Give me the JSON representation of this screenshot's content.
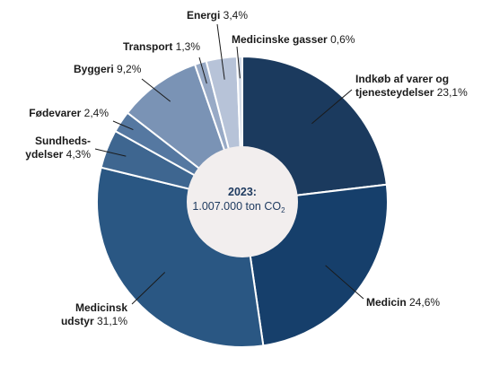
{
  "chart_data": {
    "type": "pie",
    "donut": true,
    "center_label": {
      "line1": "2023:",
      "line2": "1.007.000 ton CO",
      "line2_sub": "2"
    },
    "slices": [
      {
        "label": "Indkøb af varer og tjenesteydelser",
        "label_lines": [
          "Indkøb af varer og",
          "tjenesteydelser"
        ],
        "bold_part": [
          "Indkøb af varer og",
          "tjenesteydelser"
        ],
        "value_text": "23,1%",
        "value": 23.1,
        "color": "#1b3a5e"
      },
      {
        "label": "Medicin",
        "label_lines": [
          "Medicin"
        ],
        "bold_part": [
          "Medicin"
        ],
        "value_text": "24,6%",
        "value": 24.6,
        "color": "#163f6b"
      },
      {
        "label": "Medicinsk udstyr",
        "label_lines": [
          "Medicinsk",
          "udstyr"
        ],
        "bold_part": [
          "Medicinsk",
          "udstyr"
        ],
        "value_text": "31,1%",
        "value": 31.1,
        "color": "#2a5783"
      },
      {
        "label": "Sundhedsydelser",
        "label_lines": [
          "Sundheds-",
          "ydelser"
        ],
        "bold_part": [
          "Sundheds-",
          "ydelser"
        ],
        "value_text": "4,3%",
        "value": 4.3,
        "color": "#3e6690"
      },
      {
        "label": "Fødevarer",
        "label_lines": [
          "Fødevarer"
        ],
        "bold_part": [
          "Fødevarer"
        ],
        "value_text": "2,4%",
        "value": 2.4,
        "color": "#5578a1"
      },
      {
        "label": "Byggeri",
        "label_lines": [
          "Byggeri"
        ],
        "bold_part": [
          "Byggeri"
        ],
        "value_text": "9,2%",
        "value": 9.2,
        "color": "#7a93b5"
      },
      {
        "label": "Transport",
        "label_lines": [
          "Transport"
        ],
        "bold_part": [
          "Transport"
        ],
        "value_text": "1,3%",
        "value": 1.3,
        "color": "#98aac6"
      },
      {
        "label": "Energi",
        "label_lines": [
          "Energi"
        ],
        "bold_part": [
          "Energi"
        ],
        "value_text": "3,4%",
        "value": 3.4,
        "color": "#b7c3d8"
      },
      {
        "label": "Medicinske gasser",
        "label_lines": [
          "Medicinske gasser"
        ],
        "bold_part": [
          "Medicinske gasser"
        ],
        "value_text": "0,6%",
        "value": 0.6,
        "color": "#d3dbe8"
      }
    ],
    "colors": {
      "center_fill": "#f2eeee",
      "separator": "#ffffff",
      "leader": "#1a1a1a",
      "center_text": "#1f3b60"
    }
  }
}
